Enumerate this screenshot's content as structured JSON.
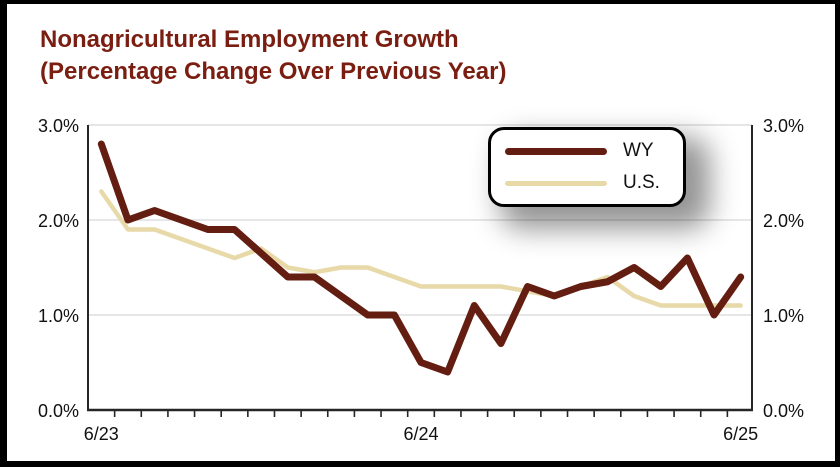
{
  "title": {
    "line1": "Nonagricultural Employment Growth",
    "line2": "(Percentage Change Over Previous Year)"
  },
  "colors": {
    "title_text": "#7b1e12",
    "wy_line": "#641d11",
    "us_line": "#e8d9a9",
    "gridline": "#d6d6d6",
    "axis_line": "#262626",
    "label_text": "#111111",
    "legend_border": "#000000",
    "legend_background": "#ffffff"
  },
  "legend": {
    "position": "top-right",
    "entries": [
      {
        "label": "WY"
      },
      {
        "label": "U.S."
      }
    ]
  },
  "chart_data": {
    "type": "line",
    "title": "Nonagricultural Employment Growth (Percentage Change Over Previous Year)",
    "xlabel": "",
    "ylabel": "Percentage change over previous year",
    "x": [
      "6/23",
      "7/23",
      "8/23",
      "9/23",
      "10/23",
      "11/23",
      "12/23",
      "1/24",
      "2/24",
      "3/24",
      "4/24",
      "5/24",
      "6/24",
      "7/24",
      "8/24",
      "9/24",
      "10/24",
      "11/24",
      "12/24",
      "1/25",
      "2/25",
      "3/25",
      "4/25",
      "5/25",
      "6/25"
    ],
    "series": [
      {
        "name": "WY",
        "color": "#641d11",
        "values": [
          2.8,
          2.0,
          2.1,
          2.0,
          1.9,
          1.9,
          1.65,
          1.4,
          1.4,
          1.2,
          1.0,
          1.0,
          0.5,
          0.4,
          1.1,
          0.7,
          1.3,
          1.2,
          1.3,
          1.35,
          1.5,
          1.3,
          1.6,
          1.0,
          1.4
        ]
      },
      {
        "name": "U.S.",
        "color": "#e8d9a9",
        "values": [
          2.3,
          1.9,
          1.9,
          1.8,
          1.7,
          1.6,
          1.7,
          1.5,
          1.45,
          1.5,
          1.5,
          1.4,
          1.3,
          1.3,
          1.3,
          1.3,
          1.25,
          1.2,
          1.3,
          1.4,
          1.2,
          1.1,
          1.1,
          1.1,
          1.1
        ]
      }
    ],
    "ylim": [
      0,
      3
    ],
    "ytick_values": [
      0,
      1,
      2,
      3
    ],
    "ytick_labels": [
      "0.0%",
      "1.0%",
      "2.0%",
      "3.0%"
    ],
    "y_axis_sides": "both",
    "xticks": [
      {
        "index": 0,
        "label": "6/23"
      },
      {
        "index": 12,
        "label": "6/24"
      },
      {
        "index": 24,
        "label": "6/25"
      }
    ],
    "grid": "horizontal"
  }
}
